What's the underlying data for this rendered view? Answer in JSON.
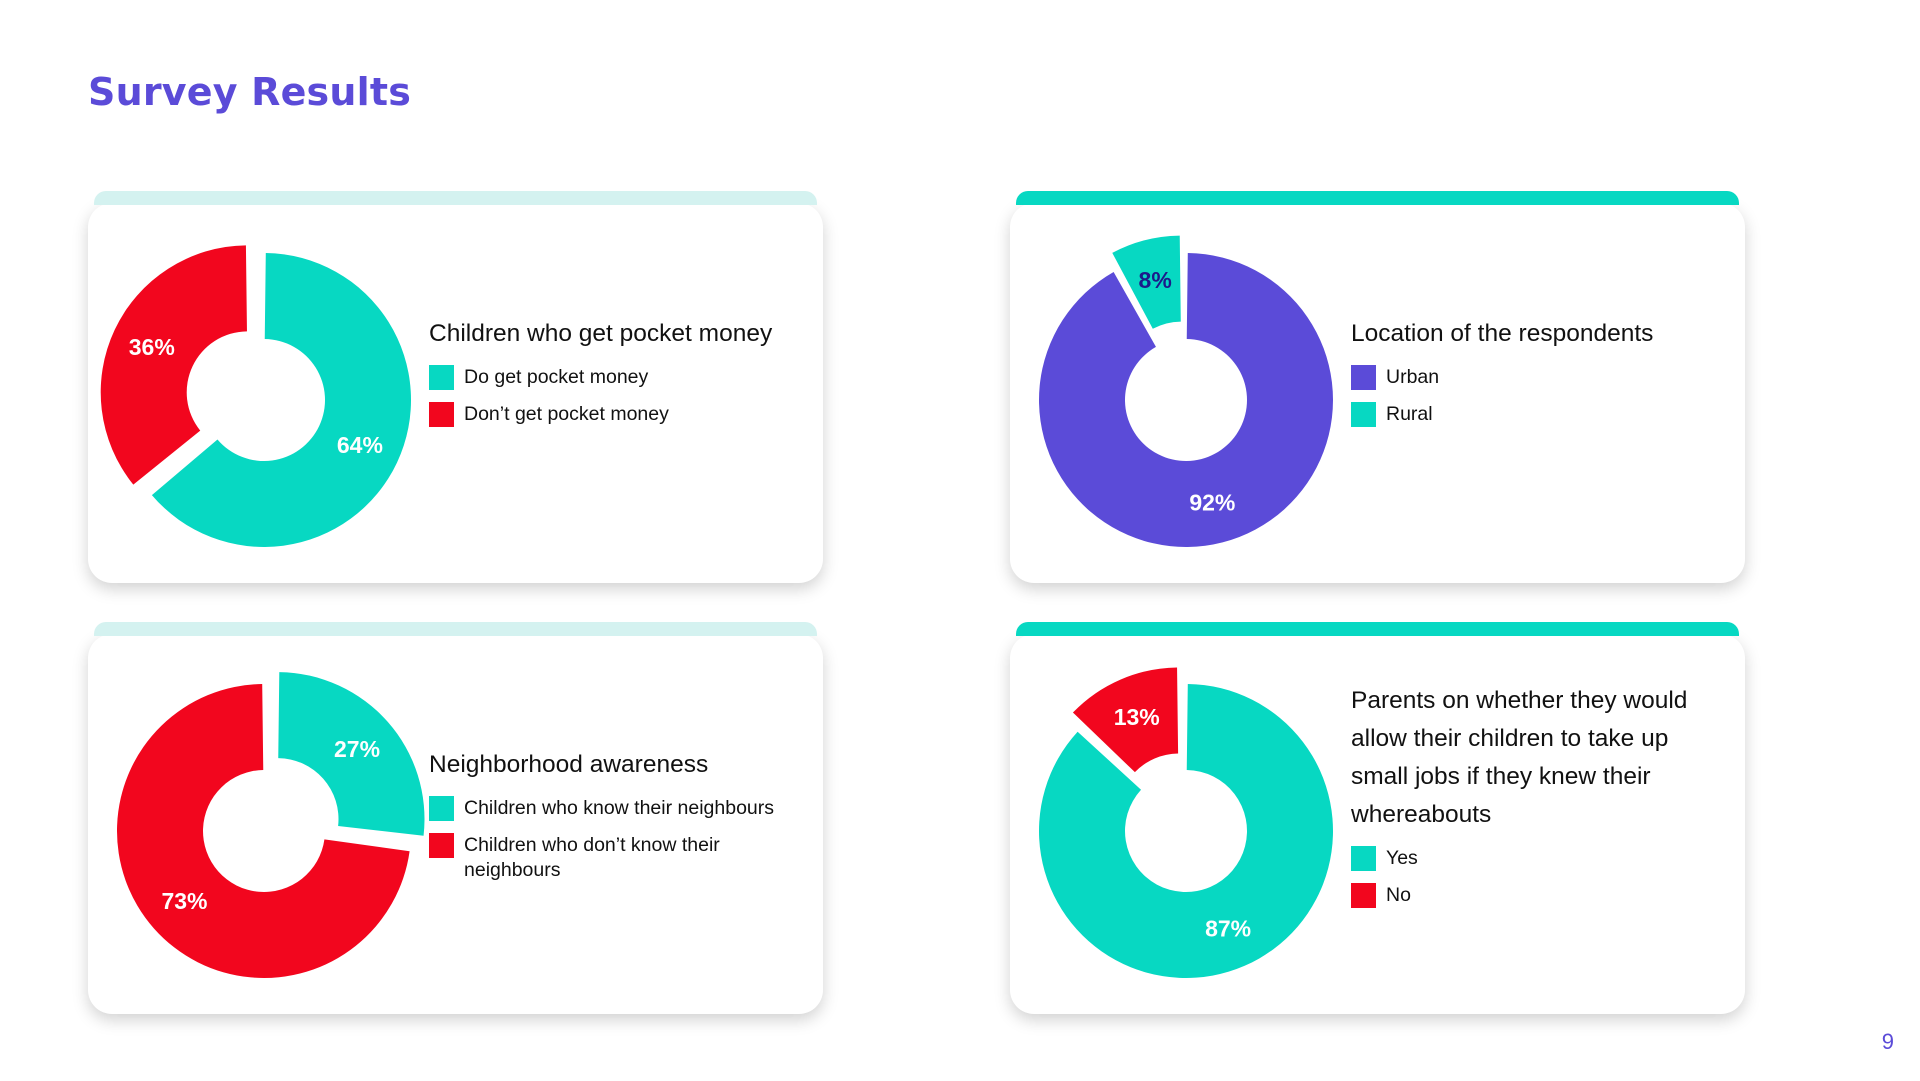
{
  "page": {
    "title": "Survey Results",
    "page_number": "9"
  },
  "colors": {
    "title": "#5b4bd8",
    "teal": "#07d8c2",
    "red": "#f2061e",
    "purple": "#5b4bd8",
    "topbar_pale": "#d4f2f0",
    "label_dark": "#1c1a8a",
    "label_light": "#ffffff"
  },
  "chart_data": [
    {
      "type": "pie",
      "title": "Children who get pocket money",
      "series": [
        {
          "name": "Do get pocket money",
          "value": 64,
          "label": "64%",
          "color": "#07d8c2"
        },
        {
          "name": "Don’t get pocket money",
          "value": 36,
          "label": "36%",
          "color": "#f2061e",
          "exploded": true
        }
      ]
    },
    {
      "type": "pie",
      "title": "Location of the respondents",
      "series": [
        {
          "name": "Urban",
          "value": 92,
          "label": "92%",
          "color": "#5b4bd8"
        },
        {
          "name": "Rural",
          "value": 8,
          "label": "8%",
          "color": "#07d8c2",
          "exploded": true
        }
      ]
    },
    {
      "type": "pie",
      "title": "Neighborhood awareness",
      "series": [
        {
          "name": "Children who know their neighbours",
          "value": 27,
          "label": "27%",
          "color": "#07d8c2",
          "exploded": true
        },
        {
          "name": "Children who don’t know their neighbours",
          "value": 73,
          "label": "73%",
          "color": "#f2061e"
        }
      ]
    },
    {
      "type": "pie",
      "title": "Parents on whether they would allow their children to take up small jobs if they knew their whereabouts",
      "series": [
        {
          "name": "Yes",
          "value": 87,
          "label": "87%",
          "color": "#07d8c2"
        },
        {
          "name": "No",
          "value": 13,
          "label": "13%",
          "color": "#f2061e",
          "exploded": true
        }
      ]
    }
  ]
}
